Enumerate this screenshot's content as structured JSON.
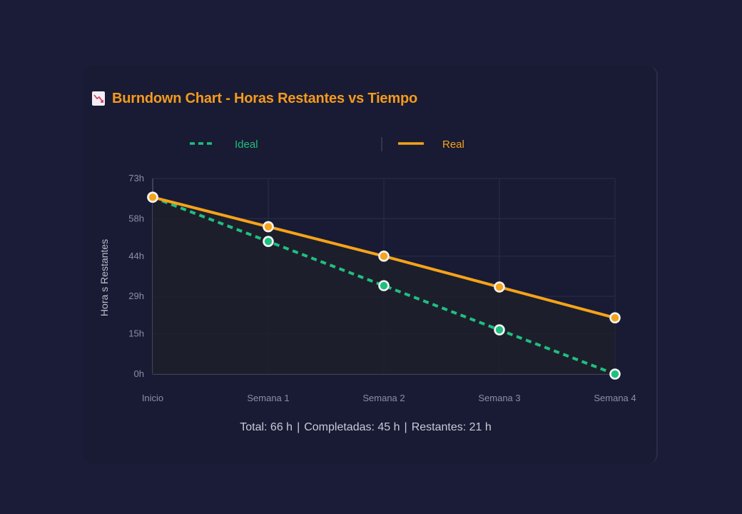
{
  "title": {
    "text": "Burndown Chart - Horas Restantes vs Tiempo",
    "icon": "chart-decreasing-icon"
  },
  "legend": {
    "items": [
      {
        "label": "Ideal",
        "color": "#1fbf7f",
        "style": "dashed"
      },
      {
        "label": "Real",
        "color": "#f5a31a",
        "style": "solid"
      }
    ],
    "placement": "top"
  },
  "summary": {
    "total": "Total: 66 h",
    "completed": "Completadas: 45 h",
    "remaining": "Restantes: 21 h",
    "separator": "|"
  },
  "colors": {
    "background": "#1b1c37",
    "title": "#f59a1e",
    "ideal": "#1fbf7f",
    "real": "#f5a31a",
    "grid": "#2a2e48",
    "tick": "#8a8fa6"
  },
  "chart_data": {
    "type": "line",
    "title": "Burndown Chart - Horas Restantes vs Tiempo",
    "xlabel": "",
    "ylabel": "Hora s Restantes",
    "categories": [
      "Inicio",
      "Semana 1",
      "Semana 2",
      "Semana 3",
      "Semana 4"
    ],
    "y_ticks": [
      0,
      15,
      29,
      44,
      58,
      73
    ],
    "y_tick_labels": [
      "0h",
      "15h",
      "29h",
      "44h",
      "58h",
      "73h"
    ],
    "ylim": [
      0,
      73
    ],
    "grid": true,
    "series": [
      {
        "name": "Ideal",
        "values": [
          66,
          49.5,
          33,
          16.5,
          0
        ]
      },
      {
        "name": "Real",
        "values": [
          66,
          55,
          44,
          32.5,
          21
        ]
      }
    ]
  }
}
